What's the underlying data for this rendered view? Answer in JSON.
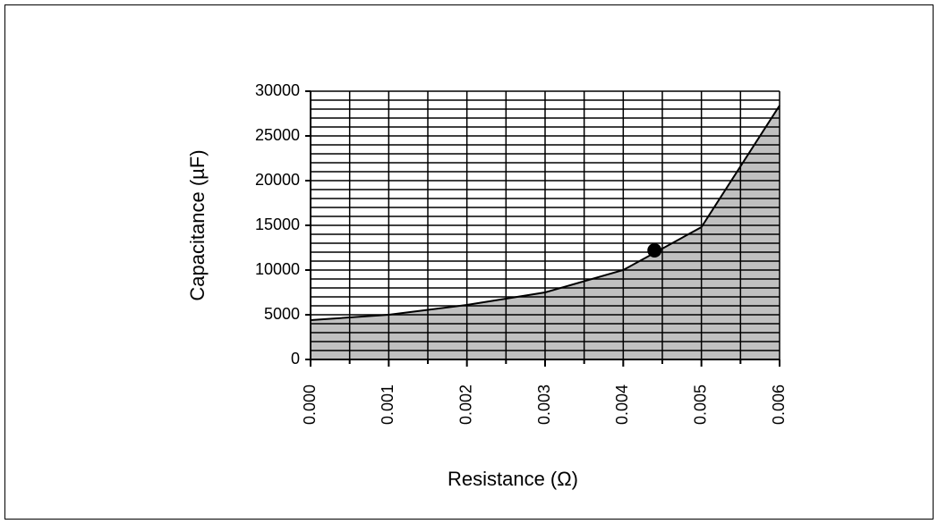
{
  "chart_data": {
    "type": "area",
    "xlabel": "Resistance (Ω)",
    "ylabel": "Capacitance (µF)",
    "x": [
      0,
      0.001,
      0.002,
      0.003,
      0.004,
      0.005,
      0.006
    ],
    "values": [
      4400,
      5000,
      6100,
      7500,
      10000,
      14800,
      28400
    ],
    "color": "#c0c0c0",
    "marker": {
      "x": 0.0044,
      "y": 12200,
      "color": "#000000"
    },
    "xlim": [
      0,
      0.006
    ],
    "xticks": [
      {
        "value": 0,
        "label": "0.000"
      },
      {
        "value": 0.001,
        "label": "0.001"
      },
      {
        "value": 0.002,
        "label": "0.002"
      },
      {
        "value": 0.003,
        "label": "0.003"
      },
      {
        "value": 0.004,
        "label": "0.004"
      },
      {
        "value": 0.005,
        "label": "0.005"
      },
      {
        "value": 0.006,
        "label": "0.006"
      }
    ],
    "ylim": [
      0,
      30000
    ],
    "yticks": [
      0,
      5000,
      10000,
      15000,
      20000,
      25000,
      30000
    ],
    "grid": true
  }
}
